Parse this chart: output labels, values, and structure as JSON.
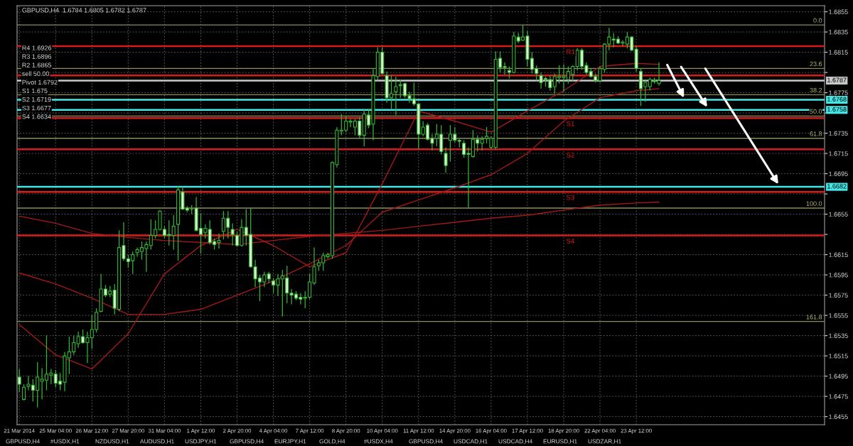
{
  "chart_data": {
    "type": "candlestick",
    "title": "GBPUSD,H4  1.6784 1.6805 1.6782 1.6787",
    "color": "#35b535",
    "categories": [
      "21 Mar 2014",
      null,
      null,
      null,
      null,
      null,
      null,
      null,
      "25 Mar 04:00",
      null,
      null,
      null,
      null,
      null,
      null,
      null,
      "26 Mar 12:00",
      null,
      null,
      null,
      null,
      null,
      null,
      null,
      "27 Mar 20:00",
      null,
      null,
      null,
      null,
      null,
      null,
      null,
      "31 Mar 04:00",
      null,
      null,
      null,
      null,
      null,
      null,
      null,
      "1 Apr 12:00",
      null,
      null,
      null,
      null,
      null,
      null,
      null,
      "2 Apr 20:00",
      null,
      null,
      null,
      null,
      null,
      null,
      null,
      "4 Apr 04:00",
      null,
      null,
      null,
      null,
      null,
      null,
      null,
      "7 Apr 12:00",
      null,
      null,
      null,
      null,
      null,
      null,
      null,
      "8 Apr 20:00",
      null,
      null,
      null,
      null,
      null,
      null,
      null,
      "10 Apr 04:00",
      null,
      null,
      null,
      null,
      null,
      null,
      null,
      "11 Apr 12:00",
      null,
      null,
      null,
      null,
      null,
      null,
      null,
      "14 Apr 20:00",
      null,
      null,
      null,
      null,
      null,
      null,
      null,
      "16 Apr 04:00",
      null,
      null,
      null,
      null,
      null,
      null,
      null,
      "17 Apr 12:00",
      null,
      null,
      null,
      null,
      null,
      null,
      null,
      "18 Apr 20:00",
      null,
      null,
      null,
      null,
      null,
      null,
      null,
      "22 Apr 04:00",
      null,
      null,
      null,
      null,
      null,
      null,
      null,
      "23 Apr 12:00",
      null,
      null,
      null,
      null,
      null,
      null,
      null,
      null,
      null,
      null,
      null,
      null,
      null,
      null,
      null,
      null,
      null,
      null,
      null,
      null,
      null,
      null,
      null,
      null,
      null,
      null,
      null,
      null,
      null,
      null,
      null,
      null,
      null,
      null,
      null,
      null,
      null,
      null,
      null,
      null,
      null
    ],
    "ohlc": [
      [
        1.6494,
        1.6502,
        1.6479,
        1.6487
      ],
      [
        1.6472,
        1.6487,
        1.6471,
        1.6484
      ],
      [
        1.6485,
        1.6495,
        1.6481,
        1.6487
      ],
      [
        1.6486,
        1.6492,
        1.647,
        1.6481
      ],
      [
        1.6481,
        1.6509,
        1.6464,
        1.6494
      ],
      [
        1.649,
        1.6503,
        1.6472,
        1.6492
      ],
      [
        1.6491,
        1.6535,
        1.6481,
        1.6497
      ],
      [
        1.6496,
        1.6502,
        1.6487,
        1.6498
      ],
      [
        1.6497,
        1.6501,
        1.6484,
        1.6488
      ],
      [
        1.649,
        1.6498,
        1.6481,
        1.6487
      ],
      [
        1.6489,
        1.6519,
        1.648,
        1.6515
      ],
      [
        1.6513,
        1.6534,
        1.6497,
        1.6519
      ],
      [
        1.6519,
        1.6535,
        1.6516,
        1.6528
      ],
      [
        1.6527,
        1.6539,
        1.6523,
        1.6534
      ],
      [
        1.6534,
        1.6541,
        1.6527,
        1.6528
      ],
      [
        1.6528,
        1.6539,
        1.6508,
        1.6533
      ],
      [
        1.6533,
        1.6555,
        1.6522,
        1.6541
      ],
      [
        1.6541,
        1.6562,
        1.6538,
        1.6558
      ],
      [
        1.6559,
        1.6596,
        1.6558,
        1.6581
      ],
      [
        1.6581,
        1.6585,
        1.6573,
        1.6575
      ],
      [
        1.6576,
        1.6584,
        1.6573,
        1.6579
      ],
      [
        1.658,
        1.6586,
        1.6556,
        1.6562
      ],
      [
        1.6561,
        1.6639,
        1.6559,
        1.6622
      ],
      [
        1.6624,
        1.6647,
        1.6609,
        1.6611
      ],
      [
        1.6611,
        1.6615,
        1.6602,
        1.6608
      ],
      [
        1.6609,
        1.6618,
        1.6596,
        1.6615
      ],
      [
        1.6617,
        1.6622,
        1.6613,
        1.662
      ],
      [
        1.6618,
        1.6628,
        1.661,
        1.6622
      ],
      [
        1.6621,
        1.6628,
        1.6598,
        1.6625
      ],
      [
        1.6624,
        1.665,
        1.662,
        1.6634
      ],
      [
        1.6634,
        1.6649,
        1.6631,
        1.664
      ],
      [
        1.664,
        1.6659,
        1.6639,
        1.6658
      ],
      [
        1.664,
        1.6643,
        1.6631,
        1.6634
      ],
      [
        1.6635,
        1.6649,
        1.6624,
        1.6634
      ],
      [
        1.6634,
        1.6654,
        1.662,
        1.6643
      ],
      [
        1.6645,
        1.6683,
        1.6609,
        1.6679
      ],
      [
        1.6677,
        1.6682,
        1.6659,
        1.666
      ],
      [
        1.6661,
        1.6663,
        1.6657,
        1.6659
      ],
      [
        1.666,
        1.6664,
        1.6655,
        1.666
      ],
      [
        1.6661,
        1.6672,
        1.6638,
        1.6639
      ],
      [
        1.6641,
        1.6656,
        1.6616,
        1.6635
      ],
      [
        1.6637,
        1.6645,
        1.6631,
        1.6641
      ],
      [
        1.664,
        1.6649,
        1.6625,
        1.6627
      ],
      [
        1.6628,
        1.6631,
        1.662,
        1.6625
      ],
      [
        1.6627,
        1.6636,
        1.6621,
        1.6629
      ],
      [
        1.6638,
        1.6658,
        1.663,
        1.6651
      ],
      [
        1.6651,
        1.6658,
        1.6631,
        1.6642
      ],
      [
        1.664,
        1.6646,
        1.6624,
        1.6635
      ],
      [
        1.6634,
        1.6638,
        1.6623,
        1.6624
      ],
      [
        1.6624,
        1.665,
        1.6623,
        1.6642
      ],
      [
        1.6642,
        1.666,
        1.6624,
        1.6634
      ],
      [
        1.6635,
        1.6661,
        1.6602,
        1.6603
      ],
      [
        1.6603,
        1.661,
        1.6583,
        1.6591
      ],
      [
        1.6592,
        1.6595,
        1.6569,
        1.6588
      ],
      [
        1.6588,
        1.6598,
        1.6583,
        1.6595
      ],
      [
        1.6596,
        1.6598,
        1.6587,
        1.6591
      ],
      [
        1.6589,
        1.6592,
        1.6577,
        1.6585
      ],
      [
        1.6585,
        1.6596,
        1.6574,
        1.6591
      ],
      [
        1.6591,
        1.66,
        1.6554,
        1.6594
      ],
      [
        1.6592,
        1.6604,
        1.6567,
        1.6577
      ],
      [
        1.6577,
        1.6581,
        1.6566,
        1.6575
      ],
      [
        1.6576,
        1.6579,
        1.657,
        1.6572
      ],
      [
        1.6573,
        1.6577,
        1.6566,
        1.6571
      ],
      [
        1.6572,
        1.6579,
        1.6562,
        1.6573
      ],
      [
        1.6573,
        1.6596,
        1.6571,
        1.6588
      ],
      [
        1.6587,
        1.6622,
        1.6585,
        1.6603
      ],
      [
        1.6604,
        1.661,
        1.6599,
        1.6607
      ],
      [
        1.6607,
        1.6617,
        1.6599,
        1.6614
      ],
      [
        1.6613,
        1.6617,
        1.6611,
        1.6615
      ],
      [
        1.6614,
        1.6707,
        1.6611,
        1.6706
      ],
      [
        1.6704,
        1.6741,
        1.6701,
        1.6738
      ],
      [
        1.6737,
        1.6754,
        1.6733,
        1.6738
      ],
      [
        1.6738,
        1.6752,
        1.6736,
        1.6747
      ],
      [
        1.6746,
        1.6749,
        1.6741,
        1.6747
      ],
      [
        1.6741,
        1.6749,
        1.6733,
        1.6747
      ],
      [
        1.6747,
        1.6751,
        1.673,
        1.6733
      ],
      [
        1.6733,
        1.6759,
        1.6722,
        1.6754
      ],
      [
        1.6753,
        1.6759,
        1.674,
        1.6743
      ],
      [
        1.6744,
        1.6799,
        1.6728,
        1.6792
      ],
      [
        1.6791,
        1.682,
        1.6787,
        1.6815
      ],
      [
        1.6815,
        1.682,
        1.6793,
        1.6794
      ],
      [
        1.6792,
        1.6796,
        1.6765,
        1.677
      ],
      [
        1.677,
        1.6792,
        1.6759,
        1.6774
      ],
      [
        1.6776,
        1.6791,
        1.6753,
        1.6781
      ],
      [
        1.6782,
        1.6788,
        1.677,
        1.6783
      ],
      [
        1.6784,
        1.6785,
        1.677,
        1.6772
      ],
      [
        1.6772,
        1.6776,
        1.6765,
        1.6769
      ],
      [
        1.6769,
        1.6785,
        1.6762,
        1.6764
      ],
      [
        1.6764,
        1.6765,
        1.6719,
        1.6734
      ],
      [
        1.6734,
        1.6747,
        1.6732,
        1.6741
      ],
      [
        1.6743,
        1.6745,
        1.6728,
        1.6729
      ],
      [
        1.673,
        1.6734,
        1.6718,
        1.6725
      ],
      [
        1.673,
        1.6744,
        1.6722,
        1.6734
      ],
      [
        1.6734,
        1.6743,
        1.6714,
        1.6717
      ],
      [
        1.6715,
        1.6721,
        1.6696,
        1.6703
      ],
      [
        1.6728,
        1.6743,
        1.6707,
        1.6734
      ],
      [
        1.6734,
        1.6741,
        1.6726,
        1.6728
      ],
      [
        1.6728,
        1.6729,
        1.6721,
        1.6727
      ],
      [
        1.6725,
        1.6728,
        1.6711,
        1.6714
      ],
      [
        1.6715,
        1.6721,
        1.6661,
        1.6714
      ],
      [
        1.6712,
        1.6738,
        1.6711,
        1.6729
      ],
      [
        1.6729,
        1.6733,
        1.6717,
        1.6725
      ],
      [
        1.6725,
        1.6732,
        1.6718,
        1.6729
      ],
      [
        1.673,
        1.6741,
        1.6725,
        1.6732
      ],
      [
        1.6721,
        1.6732,
        1.6719,
        1.673
      ],
      [
        1.6721,
        1.6816,
        1.6719,
        1.6808
      ],
      [
        1.6809,
        1.6816,
        1.6795,
        1.68
      ],
      [
        1.6801,
        1.6805,
        1.6793,
        1.68
      ],
      [
        1.6797,
        1.6801,
        1.6789,
        1.6795
      ],
      [
        1.6795,
        1.6835,
        1.6794,
        1.6831
      ],
      [
        1.683,
        1.6834,
        1.6824,
        1.6826
      ],
      [
        1.6827,
        1.6842,
        1.6826,
        1.683
      ],
      [
        1.6831,
        1.6836,
        1.6801,
        1.6808
      ],
      [
        1.6809,
        1.6815,
        1.6794,
        1.6798
      ],
      [
        1.6799,
        1.6802,
        1.6787,
        1.6794
      ],
      [
        1.6792,
        1.6795,
        1.6779,
        1.6785
      ],
      [
        1.6789,
        1.6791,
        1.6781,
        1.6788
      ],
      [
        1.6788,
        1.6792,
        1.6777,
        1.678
      ],
      [
        1.6781,
        1.6794,
        1.6774,
        1.6791
      ],
      [
        1.679,
        1.6802,
        1.6784,
        1.6791
      ],
      [
        1.679,
        1.6803,
        1.6776,
        1.6791
      ],
      [
        1.6788,
        1.6801,
        1.6784,
        1.6796
      ],
      [
        1.6793,
        1.6802,
        1.6786,
        1.6801
      ],
      [
        1.6801,
        1.6819,
        1.6797,
        1.6817
      ],
      [
        1.6817,
        1.6819,
        1.6798,
        1.6801
      ],
      [
        1.6802,
        1.6805,
        1.6793,
        1.6795
      ],
      [
        1.6796,
        1.6799,
        1.679,
        1.6791
      ],
      [
        1.6791,
        1.6794,
        1.6785,
        1.6787
      ],
      [
        1.6787,
        1.6801,
        1.6785,
        1.6799
      ],
      [
        1.6798,
        1.6824,
        1.6795,
        1.6823
      ],
      [
        1.6823,
        1.6839,
        1.6817,
        1.683
      ],
      [
        1.6828,
        1.6834,
        1.682,
        1.6827
      ],
      [
        1.6828,
        1.6831,
        1.6823,
        1.6824
      ],
      [
        1.6824,
        1.6827,
        1.6821,
        1.6825
      ],
      [
        1.6823,
        1.6835,
        1.6819,
        1.683
      ],
      [
        1.683,
        1.6831,
        1.6816,
        1.6817
      ],
      [
        1.6818,
        1.6821,
        1.6796,
        1.6799
      ],
      [
        1.6796,
        1.6799,
        1.6762,
        1.6779
      ],
      [
        1.6781,
        1.6787,
        1.6766,
        1.6785
      ],
      [
        1.6781,
        1.679,
        1.6777,
        1.6788
      ],
      [
        1.6787,
        1.679,
        1.6784,
        1.6786
      ],
      [
        1.6784,
        1.6805,
        1.6782,
        1.6787
      ],
      null,
      null,
      null,
      null,
      null,
      null,
      null,
      null,
      null,
      null,
      null,
      null,
      null,
      null,
      null,
      null,
      null,
      null,
      null,
      null,
      null,
      null,
      null,
      null,
      null,
      null,
      null,
      null,
      null,
      null,
      null,
      null,
      null,
      null,
      null,
      null
    ],
    "series": [
      {
        "type": "line",
        "color": "#a51818",
        "values": [
          1.6546,
          null,
          null,
          null,
          null,
          null,
          null,
          null,
          1.6516,
          null,
          null,
          null,
          null,
          null,
          null,
          null,
          1.6502,
          null,
          null,
          null,
          null,
          null,
          null,
          null,
          1.6537,
          null,
          null,
          null,
          null,
          null,
          null,
          null,
          1.6596,
          null,
          null,
          null,
          null,
          null,
          null,
          null,
          1.6624,
          null,
          null,
          null,
          null,
          null,
          null,
          null,
          1.664,
          null,
          null,
          null,
          null,
          null,
          null,
          null,
          1.6624,
          null,
          null,
          null,
          null,
          null,
          null,
          null,
          1.6603,
          null,
          null,
          null,
          null,
          null,
          null,
          null,
          1.6617,
          null,
          null,
          null,
          null,
          null,
          null,
          null,
          1.6685,
          null,
          null,
          null,
          null,
          null,
          null,
          null,
          1.6757,
          null,
          null,
          null,
          null,
          null,
          null,
          null,
          1.6747,
          null,
          null,
          null,
          null,
          null,
          null,
          null,
          1.6736,
          null,
          null,
          null,
          null,
          null,
          null,
          null,
          1.6757,
          null,
          null,
          null,
          null,
          null,
          null,
          null,
          1.6777,
          null,
          null,
          null,
          null,
          null,
          null,
          null,
          1.6801,
          null,
          null,
          null,
          null,
          null,
          null,
          null,
          1.6804,
          null,
          null,
          null,
          null,
          1.6803,
          null,
          null,
          null,
          null,
          null,
          null,
          null,
          null,
          null,
          null,
          null,
          null,
          null,
          null,
          null,
          null,
          null,
          null,
          null,
          null,
          null,
          null,
          null,
          null,
          null,
          null,
          null,
          null,
          null,
          null,
          null,
          null,
          null,
          null,
          null,
          null
        ]
      },
      {
        "type": "line",
        "color": "#a51818",
        "values": [
          1.6597,
          null,
          null,
          null,
          null,
          null,
          null,
          null,
          1.6586,
          null,
          null,
          null,
          null,
          null,
          null,
          null,
          1.6572,
          null,
          null,
          null,
          null,
          null,
          null,
          null,
          1.6556,
          null,
          null,
          null,
          null,
          null,
          null,
          null,
          1.6556,
          null,
          null,
          null,
          null,
          null,
          null,
          null,
          1.6561,
          null,
          null,
          null,
          null,
          null,
          null,
          null,
          1.6575,
          null,
          null,
          null,
          null,
          null,
          null,
          null,
          1.6589,
          null,
          null,
          null,
          null,
          null,
          null,
          null,
          1.6606,
          null,
          null,
          null,
          null,
          null,
          null,
          null,
          1.6624,
          null,
          null,
          null,
          null,
          null,
          null,
          null,
          1.6657,
          null,
          null,
          null,
          null,
          null,
          null,
          null,
          1.6669,
          null,
          null,
          null,
          null,
          null,
          null,
          null,
          1.6681,
          null,
          null,
          null,
          null,
          null,
          null,
          null,
          1.6694,
          null,
          null,
          null,
          null,
          null,
          null,
          null,
          1.6715,
          null,
          null,
          null,
          null,
          null,
          null,
          null,
          1.6747,
          null,
          null,
          null,
          null,
          null,
          null,
          null,
          1.677,
          null,
          null,
          null,
          null,
          null,
          null,
          null,
          1.6777,
          null,
          null,
          null,
          null,
          1.6779,
          null,
          null,
          null,
          null,
          null,
          null,
          null,
          null,
          null,
          null,
          null,
          null,
          null,
          null,
          null,
          null,
          null,
          null,
          null,
          null,
          null,
          null,
          null,
          null,
          null,
          null,
          null,
          null,
          null,
          null,
          null,
          null,
          null,
          null,
          null,
          null
        ]
      },
      {
        "type": "line",
        "color": "#a51818",
        "values": [
          1.6653,
          null,
          null,
          null,
          null,
          null,
          null,
          null,
          1.6646,
          null,
          null,
          null,
          null,
          null,
          null,
          null,
          1.6636,
          null,
          null,
          null,
          null,
          null,
          null,
          null,
          1.6632,
          null,
          null,
          null,
          null,
          null,
          null,
          null,
          1.6629,
          null,
          null,
          null,
          null,
          null,
          null,
          null,
          1.6627,
          null,
          null,
          null,
          null,
          null,
          null,
          null,
          1.6625,
          null,
          null,
          null,
          null,
          null,
          null,
          null,
          1.6629,
          null,
          null,
          null,
          null,
          null,
          null,
          null,
          1.6633,
          null,
          null,
          null,
          null,
          null,
          null,
          null,
          1.6636,
          null,
          null,
          null,
          null,
          null,
          null,
          null,
          1.6639,
          null,
          null,
          null,
          null,
          null,
          null,
          null,
          1.6643,
          null,
          null,
          null,
          null,
          null,
          null,
          null,
          1.6647,
          null,
          null,
          null,
          null,
          null,
          null,
          null,
          1.6651,
          null,
          null,
          null,
          null,
          null,
          null,
          null,
          1.6654,
          null,
          null,
          null,
          null,
          null,
          null,
          null,
          1.6659,
          null,
          null,
          null,
          null,
          null,
          null,
          null,
          1.6664,
          null,
          null,
          null,
          null,
          null,
          null,
          null,
          1.6666,
          null,
          null,
          null,
          null,
          1.6667,
          null,
          null,
          null,
          null,
          null,
          null,
          null,
          null,
          null,
          null,
          null,
          null,
          null,
          null,
          null,
          null,
          null,
          null,
          null,
          null,
          null,
          null,
          null,
          null,
          null,
          null,
          null,
          null,
          null,
          null,
          null,
          null,
          null,
          null,
          null,
          null
        ]
      }
    ],
    "ylim": [
      1.6447,
      1.6861
    ],
    "yticks": [
      1.6855,
      1.6835,
      1.6815,
      {
        "value": 1.6795,
        "label": null
      },
      1.6775,
      {
        "value": 1.6755,
        "label": null
      },
      1.6735,
      1.6715,
      1.6695,
      {
        "value": 1.6675,
        "label": null
      },
      1.6655,
      {
        "value": 1.6635,
        "label": null
      },
      1.6615,
      1.6595,
      1.6575,
      1.6555,
      1.6535,
      1.6515,
      1.6495,
      1.6475,
      1.6455
    ],
    "grid": true,
    "ref_lines": [
      {
        "axis": "y",
        "value": 1.6821,
        "label": "R1",
        "color": "#d41c1c"
      },
      {
        "axis": "y",
        "value": 1.6792,
        "label": null,
        "color": "#d41c1c"
      },
      {
        "axis": "y",
        "value": 1.675,
        "label": "S1",
        "color": "#d41c1c"
      },
      {
        "axis": "y",
        "value": 1.6719,
        "label": "S2",
        "color": "#d41c1c"
      },
      {
        "axis": "y",
        "value": 1.6677,
        "label": "S3",
        "color": "#d41c1c"
      },
      {
        "axis": "y",
        "value": 1.6634,
        "label": "S4",
        "color": "#d41c1c"
      },
      {
        "axis": "y",
        "value": 1.6768,
        "label": "1.6768",
        "color": "#46e6e6"
      },
      {
        "axis": "y",
        "value": 1.6758,
        "label": "1.6758",
        "color": "#46e6e6"
      },
      {
        "axis": "y",
        "value": 1.6682,
        "label": "1.6682",
        "color": "#46e6e6"
      },
      {
        "axis": "y",
        "value": 1.6787,
        "label": "1.6787",
        "color": "#c8c8c8"
      },
      {
        "axis": "y",
        "value": 1.6842,
        "label": null,
        "color": "#8c8c5a"
      },
      {
        "axis": "y",
        "value": 1.6799,
        "label": null,
        "color": "#8c8c5a"
      },
      {
        "axis": "y",
        "value": 1.6773,
        "label": null,
        "color": "#8c8c5a"
      },
      {
        "axis": "y",
        "value": 1.6752,
        "label": null,
        "color": "#8c8c5a"
      },
      {
        "axis": "y",
        "value": 1.673,
        "label": null,
        "color": "#8c8c5a"
      },
      {
        "axis": "y",
        "value": 1.6661,
        "label": null,
        "color": "#8c8c5a"
      },
      {
        "axis": "y",
        "value": 1.6549,
        "label": null,
        "color": "#8c8c5a"
      }
    ],
    "annotations": [
      "R4 1.6926",
      "R3 1.6896",
      "R2 1.6865",
      "sell 50.00",
      "Pivot 1.6792",
      "S1 1.675",
      "S2 1.6719",
      "S3 1.6677",
      "S4 1.6634",
      "GBPUSD,H4",
      "#USDX,H1",
      "NZDUSD,H1",
      "AUDUSD,H1",
      "USDJPY,H1",
      "GBPUSD,H4",
      "EURJPY,H1",
      "GOLD,H4",
      "#USDX,H4",
      "GBPUSD,H4",
      "USDCAD,H1",
      "USDCAD,H4",
      "EURUSD,H1",
      "USDZAR,H1",
      {
        "text": "0.0",
        "y": 1.6842
      },
      {
        "text": "23.6",
        "y": 1.6799
      },
      {
        "text": "38.2",
        "y": 1.6773
      },
      {
        "text": "50.0",
        "y": 1.6752
      },
      {
        "text": "61.8",
        "y": 1.673
      },
      {
        "text": "100.0",
        "y": 1.6661
      },
      {
        "text": "161.8",
        "y": 1.6549
      }
    ]
  }
}
